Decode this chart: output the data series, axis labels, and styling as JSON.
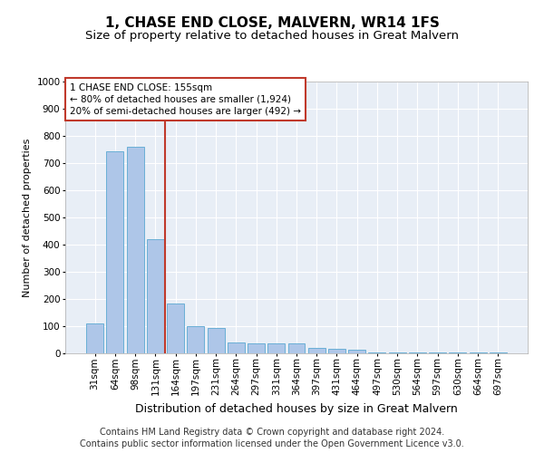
{
  "title": "1, CHASE END CLOSE, MALVERN, WR14 1FS",
  "subtitle": "Size of property relative to detached houses in Great Malvern",
  "xlabel": "Distribution of detached houses by size in Great Malvern",
  "ylabel": "Number of detached properties",
  "categories": [
    "31sqm",
    "64sqm",
    "98sqm",
    "131sqm",
    "164sqm",
    "197sqm",
    "231sqm",
    "264sqm",
    "297sqm",
    "331sqm",
    "364sqm",
    "397sqm",
    "431sqm",
    "464sqm",
    "497sqm",
    "530sqm",
    "564sqm",
    "597sqm",
    "630sqm",
    "664sqm",
    "697sqm"
  ],
  "values": [
    110,
    745,
    760,
    420,
    185,
    100,
    95,
    40,
    38,
    38,
    36,
    20,
    18,
    15,
    5,
    2,
    2,
    2,
    2,
    2,
    5
  ],
  "bar_color": "#aec6e8",
  "bar_edge_color": "#6aafd6",
  "bg_color": "#e8eef6",
  "vline_color": "#c0392b",
  "annotation_text": "1 CHASE END CLOSE: 155sqm\n← 80% of detached houses are smaller (1,924)\n20% of semi-detached houses are larger (492) →",
  "annotation_box_color": "#c0392b",
  "ylim": [
    0,
    1000
  ],
  "yticks": [
    0,
    100,
    200,
    300,
    400,
    500,
    600,
    700,
    800,
    900,
    1000
  ],
  "footer_line1": "Contains HM Land Registry data © Crown copyright and database right 2024.",
  "footer_line2": "Contains public sector information licensed under the Open Government Licence v3.0.",
  "title_fontsize": 11,
  "subtitle_fontsize": 9.5,
  "xlabel_fontsize": 9,
  "ylabel_fontsize": 8,
  "tick_fontsize": 7.5,
  "annotation_fontsize": 7.5,
  "footer_fontsize": 7
}
